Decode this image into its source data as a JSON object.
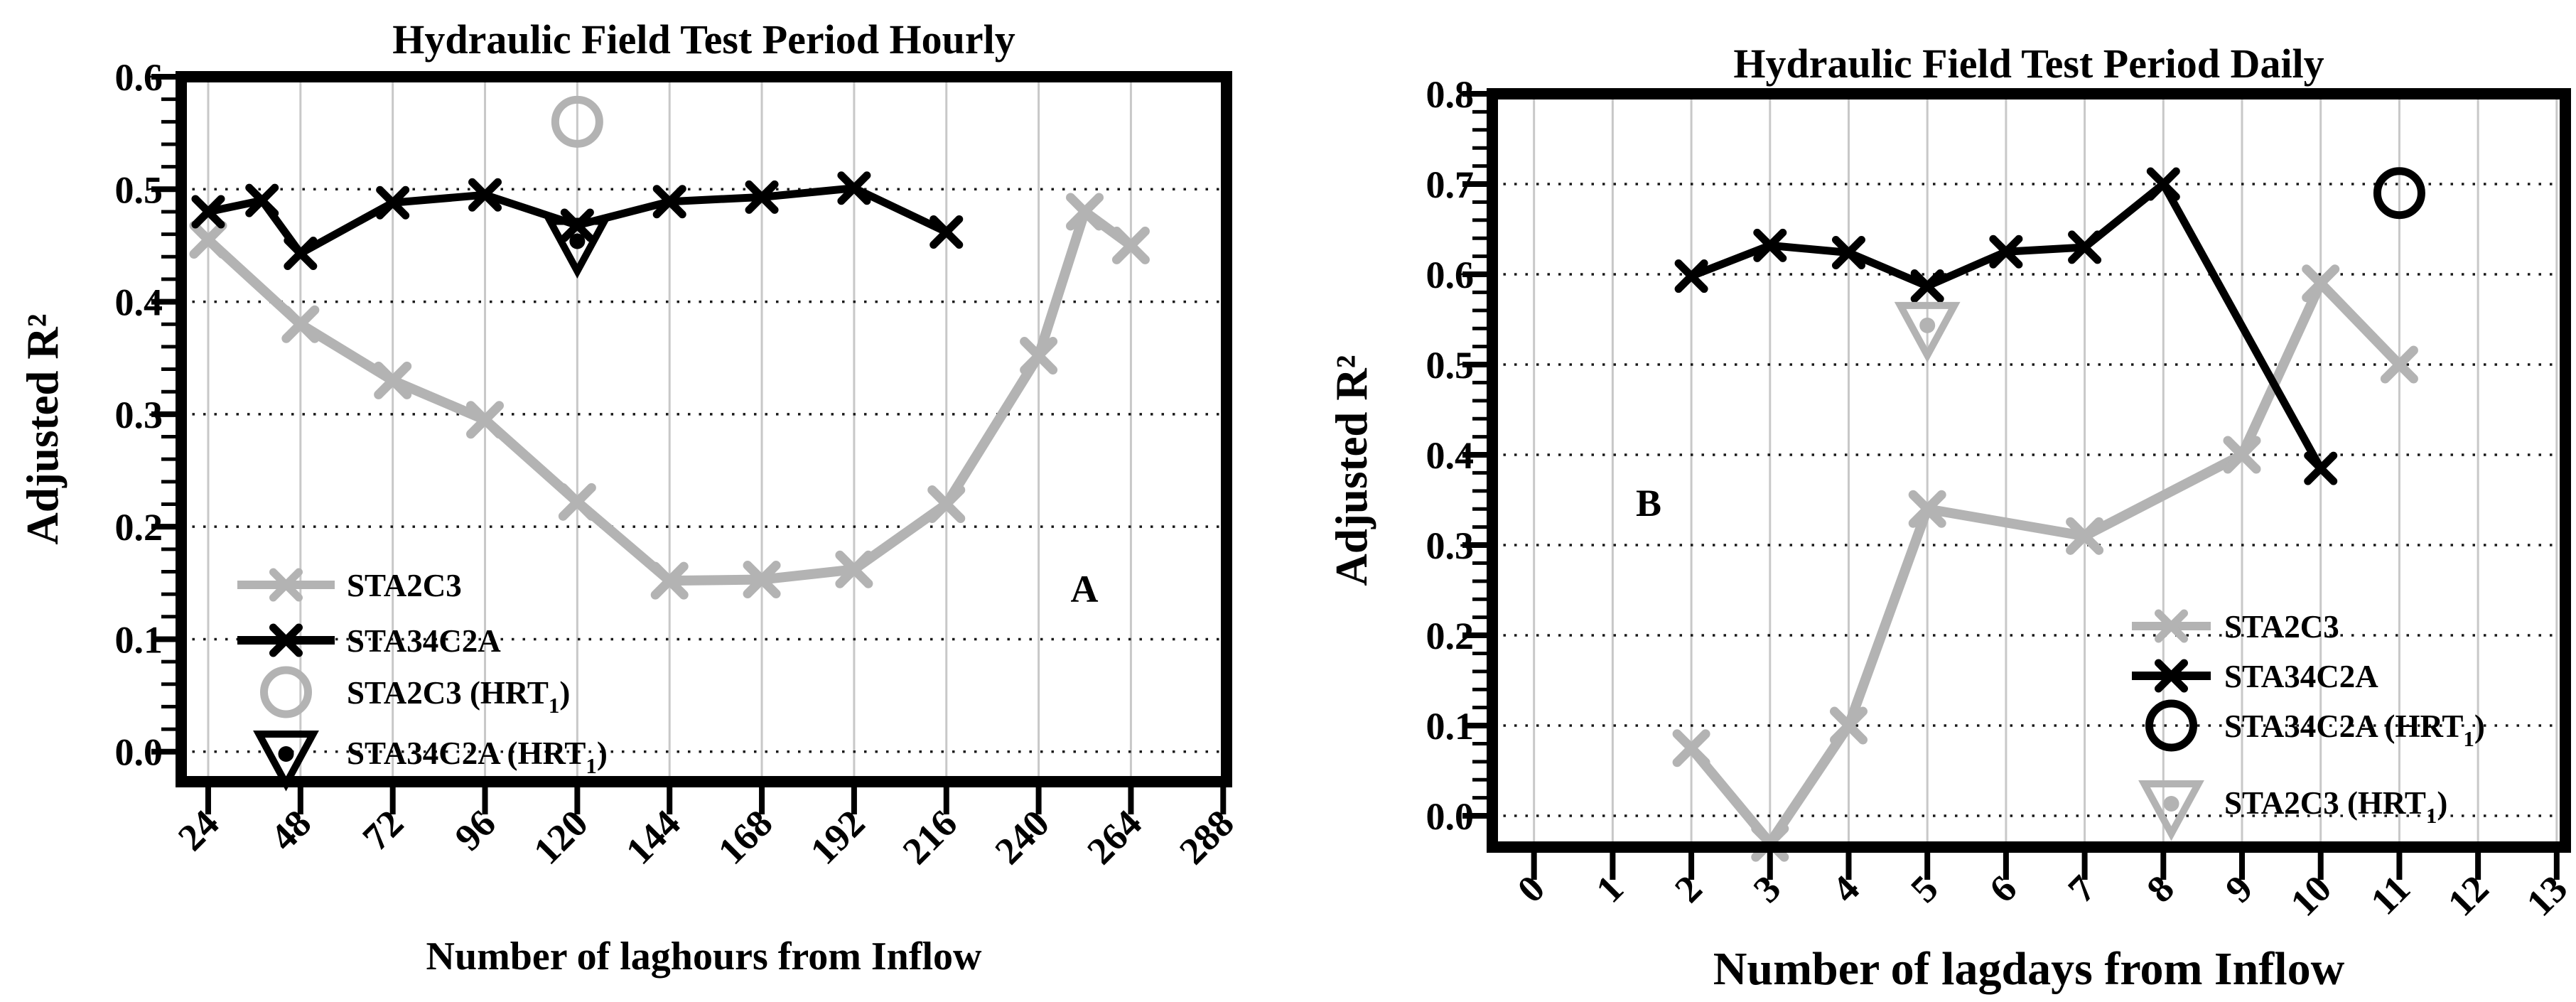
{
  "figure": {
    "background": "#ffffff",
    "text_color": "#000000",
    "gray_series_color": "#b3b3b3",
    "black_series_color": "#000000",
    "vertical_grid_color": "#c8c8c8",
    "horizontal_grid_style": "dotted"
  },
  "chart_data": [
    {
      "id": "hourly",
      "panel_label": "A",
      "type": "line",
      "title": "Hydraulic Field Test Period Hourly",
      "xlabel": "Number of laghours from Inflow",
      "ylabel": "Adjusted R²",
      "xticks": [
        24,
        48,
        72,
        96,
        120,
        144,
        168,
        192,
        216,
        240,
        264,
        288
      ],
      "yticks": [
        0.0,
        0.1,
        0.2,
        0.3,
        0.4,
        0.5,
        0.6
      ],
      "xlim": [
        16.98,
        288.87
      ],
      "ylim": [
        -0.0267,
        0.6
      ],
      "grid": {
        "vertical": true,
        "horizontal": "dotted"
      },
      "legend_position": "inside-lower-left",
      "series": [
        {
          "name": "STA2C3",
          "color": "#b3b3b3",
          "marker": "x",
          "x": [
            24,
            48,
            72,
            96,
            120,
            144,
            168,
            192,
            216,
            240,
            252,
            264
          ],
          "y": [
            0.455,
            0.38,
            0.33,
            0.295,
            0.222,
            0.152,
            0.153,
            0.162,
            0.22,
            0.352,
            0.48,
            0.45
          ]
        },
        {
          "name": "STA34C2A",
          "color": "#000000",
          "marker": "x",
          "x": [
            24,
            38,
            48,
            72,
            96,
            120,
            144,
            168,
            192,
            216
          ],
          "y": [
            0.48,
            0.49,
            0.443,
            0.488,
            0.495,
            0.468,
            0.489,
            0.493,
            0.501,
            0.462
          ]
        }
      ],
      "points": [
        {
          "name": "STA2C3 (HRT₁)",
          "marker": "circle",
          "color": "#b3b3b3",
          "x": 120,
          "y": 0.56
        },
        {
          "name": "STA34C2A (HRT₁)",
          "marker": "triangle-down-dot",
          "color": "#000000",
          "x": 120,
          "y": 0.455
        }
      ],
      "legend": [
        {
          "label": "STA2C3",
          "type": "line",
          "color": "#b3b3b3"
        },
        {
          "label": "STA34C2A",
          "type": "line",
          "color": "#000000"
        },
        {
          "label": "STA2C3 (HRT₁)",
          "type": "circle",
          "color": "#b3b3b3"
        },
        {
          "label": "STA34C2A (HRT₁)",
          "type": "triangle",
          "color": "#000000"
        }
      ]
    },
    {
      "id": "daily",
      "panel_label": "B",
      "type": "line",
      "title": "Hydraulic Field Test Period Daily",
      "xlabel": "Number of lagdays from Inflow",
      "ylabel": "Adjusted R²",
      "xticks": [
        0,
        1,
        2,
        3,
        4,
        5,
        6,
        7,
        8,
        9,
        10,
        11,
        12,
        13
      ],
      "yticks": [
        0.0,
        0.1,
        0.2,
        0.3,
        0.4,
        0.5,
        0.6,
        0.7,
        0.8
      ],
      "xlim": [
        -0.53,
        13.11
      ],
      "ylim": [
        -0.0346,
        0.8
      ],
      "grid": {
        "vertical": true,
        "horizontal": "dotted"
      },
      "legend_position": "inside-lower-right",
      "series": [
        {
          "name": "STA2C3",
          "color": "#b3b3b3",
          "marker": "x",
          "x": [
            2,
            3,
            4,
            5,
            7,
            9,
            10,
            11
          ],
          "y": [
            0.075,
            -0.03,
            0.1,
            0.34,
            0.31,
            0.4,
            0.59,
            0.5
          ]
        },
        {
          "name": "STA34C2A",
          "color": "#000000",
          "marker": "x",
          "x": [
            2,
            3,
            4,
            5,
            6,
            7,
            8,
            10
          ],
          "y": [
            0.598,
            0.632,
            0.624,
            0.587,
            0.625,
            0.63,
            0.7,
            0.385
          ]
        }
      ],
      "points": [
        {
          "name": "STA34C2A (HRT₁)",
          "marker": "circle",
          "color": "#000000",
          "x": 11,
          "y": 0.69
        },
        {
          "name": "STA2C3 (HRT₁)",
          "marker": "triangle-down-dot",
          "color": "#b3b3b3",
          "x": 5,
          "y": 0.545
        }
      ],
      "legend": [
        {
          "label": "STA2C3",
          "type": "line",
          "color": "#b3b3b3"
        },
        {
          "label": "STA34C2A",
          "type": "line",
          "color": "#000000"
        },
        {
          "label": "STA34C2A (HRT₁)",
          "type": "circle",
          "color": "#000000"
        },
        {
          "label": "STA2C3 (HRT₁)",
          "type": "triangle",
          "color": "#b3b3b3"
        }
      ]
    }
  ]
}
